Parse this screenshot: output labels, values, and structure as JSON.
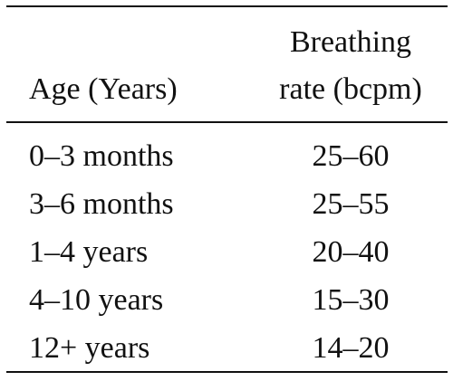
{
  "table": {
    "headers": {
      "age": "Age (Years)",
      "rate_line1": "Breathing",
      "rate_line2": "rate (bcpm)"
    },
    "rows": [
      {
        "age": "0–3 months",
        "rate": "25–60"
      },
      {
        "age": "3–6 months",
        "rate": "25–55"
      },
      {
        "age": "1–4 years",
        "rate": "20–40"
      },
      {
        "age": "4–10 years",
        "rate": "15–30"
      },
      {
        "age": "12+ years",
        "rate": "14–20"
      }
    ]
  }
}
